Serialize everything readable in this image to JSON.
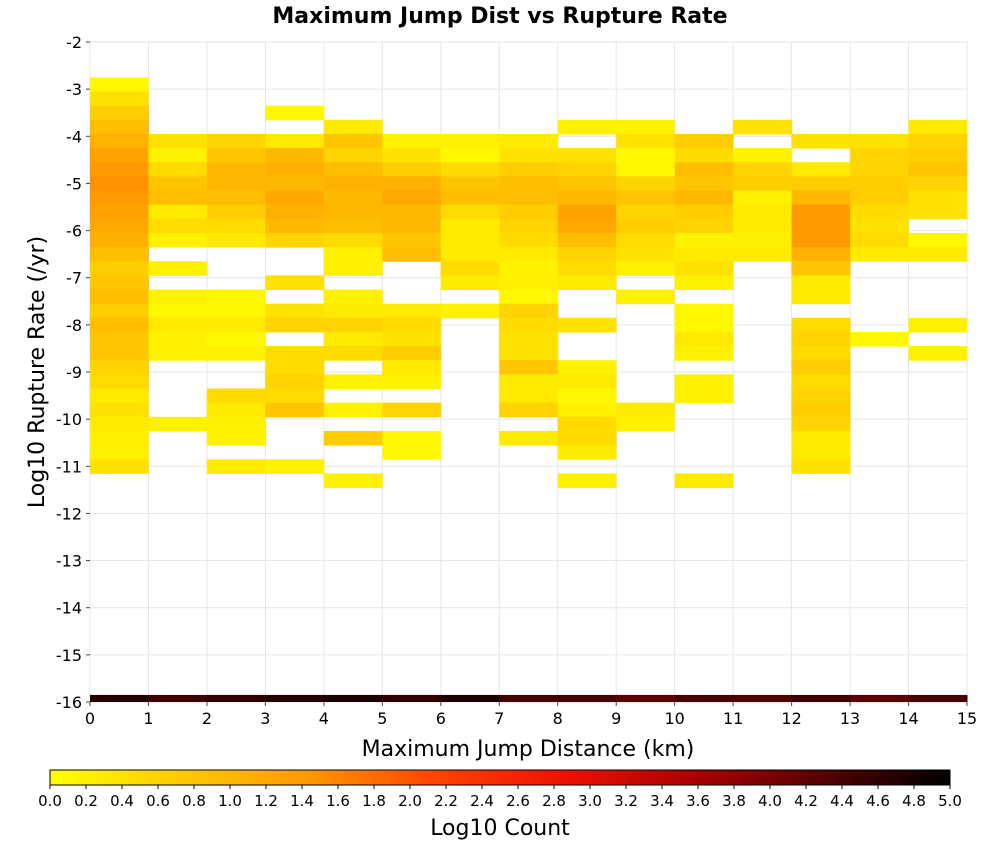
{
  "chart_data": {
    "type": "heatmap",
    "title": "Maximum Jump Dist vs Rupture Rate",
    "xlabel": "Maximum Jump Distance (km)",
    "ylabel": "Log10 Rupture Rate (/yr)",
    "xlim": [
      0,
      15
    ],
    "ylim": [
      -16,
      -2
    ],
    "x_ticks": [
      "0",
      "1",
      "2",
      "3",
      "4",
      "5",
      "6",
      "7",
      "8",
      "9",
      "10",
      "11",
      "12",
      "13",
      "14",
      "15"
    ],
    "y_ticks": [
      "-2",
      "-3",
      "-4",
      "-5",
      "-6",
      "-7",
      "-8",
      "-9",
      "-10",
      "-11",
      "-12",
      "-13",
      "-14",
      "-15",
      "-16"
    ],
    "grid": true,
    "x_bin_width": 1,
    "y_bin_width": 0.3,
    "colorbar": {
      "label": "Log10 Count",
      "range": [
        0.0,
        5.0
      ],
      "ticks": [
        "0.0",
        "0.2",
        "0.4",
        "0.6",
        "0.8",
        "1.0",
        "1.2",
        "1.4",
        "1.6",
        "1.8",
        "2.0",
        "2.2",
        "2.4",
        "2.6",
        "2.8",
        "3.0",
        "3.2",
        "3.4",
        "3.6",
        "3.8",
        "4.0",
        "4.2",
        "4.4",
        "4.6",
        "4.8",
        "5.0"
      ],
      "palette": [
        "#ffff00",
        "#ffcc00",
        "#ff9900",
        "#ff4400",
        "#ee1100",
        "#aa0000",
        "#550000",
        "#000000"
      ]
    },
    "columns": [
      {
        "x": 0,
        "bins": [
          [
            -2.9,
            0.1
          ],
          [
            -3.2,
            0.4
          ],
          [
            -3.5,
            0.7
          ],
          [
            -3.8,
            0.9
          ],
          [
            -4.1,
            1.1
          ],
          [
            -4.4,
            1.3
          ],
          [
            -4.7,
            1.4
          ],
          [
            -5.0,
            1.5
          ],
          [
            -5.3,
            1.4
          ],
          [
            -5.6,
            1.3
          ],
          [
            -5.9,
            1.2
          ],
          [
            -6.2,
            1.1
          ],
          [
            -6.5,
            0.9
          ],
          [
            -6.8,
            0.7
          ],
          [
            -7.1,
            0.8
          ],
          [
            -7.4,
            0.9
          ],
          [
            -7.7,
            0.7
          ],
          [
            -8.0,
            0.9
          ],
          [
            -8.3,
            0.8
          ],
          [
            -8.6,
            0.8
          ],
          [
            -8.9,
            0.6
          ],
          [
            -9.2,
            0.5
          ],
          [
            -9.5,
            0.3
          ],
          [
            -9.8,
            0.4
          ],
          [
            -10.1,
            0.3
          ],
          [
            -10.4,
            0.2
          ],
          [
            -10.7,
            0.2
          ],
          [
            -11.0,
            0.4
          ]
        ]
      },
      {
        "x": 1,
        "bins": [
          [
            -4.1,
            0.4
          ],
          [
            -4.4,
            0.2
          ],
          [
            -4.7,
            0.5
          ],
          [
            -5.0,
            0.8
          ],
          [
            -5.3,
            0.9
          ],
          [
            -5.6,
            0.3
          ],
          [
            -5.9,
            0.5
          ],
          [
            -6.2,
            0.2
          ],
          [
            -6.8,
            0.2
          ],
          [
            -7.7,
            0.1
          ],
          [
            -8.0,
            0.3
          ],
          [
            -8.3,
            0.2
          ],
          [
            -8.6,
            0.2
          ],
          [
            -10.1,
            0.2
          ],
          [
            -7.4,
            0.2
          ]
        ]
      },
      {
        "x": 2,
        "bins": [
          [
            -4.1,
            0.6
          ],
          [
            -4.4,
            0.8
          ],
          [
            -4.7,
            1.0
          ],
          [
            -5.0,
            1.0
          ],
          [
            -5.3,
            0.9
          ],
          [
            -5.6,
            0.7
          ],
          [
            -5.9,
            0.5
          ],
          [
            -6.2,
            0.3
          ],
          [
            -7.4,
            0.1
          ],
          [
            -7.7,
            0.1
          ],
          [
            -8.0,
            0.3
          ],
          [
            -8.3,
            0.1
          ],
          [
            -8.6,
            0.2
          ],
          [
            -9.5,
            0.5
          ],
          [
            -9.8,
            0.3
          ],
          [
            -10.1,
            0.2
          ],
          [
            -10.4,
            0.2
          ],
          [
            -11.0,
            0.3
          ]
        ]
      },
      {
        "x": 3,
        "bins": [
          [
            -3.5,
            0.1
          ],
          [
            -4.1,
            0.3
          ],
          [
            -4.4,
            1.0
          ],
          [
            -4.7,
            1.1
          ],
          [
            -5.0,
            1.0
          ],
          [
            -5.3,
            1.2
          ],
          [
            -5.6,
            1.1
          ],
          [
            -5.9,
            1.0
          ],
          [
            -6.2,
            0.6
          ],
          [
            -7.1,
            0.4
          ],
          [
            -7.7,
            0.4
          ],
          [
            -8.0,
            0.6
          ],
          [
            -8.6,
            0.5
          ],
          [
            -8.9,
            0.5
          ],
          [
            -9.2,
            0.6
          ],
          [
            -9.5,
            0.5
          ],
          [
            -9.8,
            0.8
          ],
          [
            -11.0,
            0.2
          ]
        ]
      },
      {
        "x": 4,
        "bins": [
          [
            -3.8,
            0.3
          ],
          [
            -4.1,
            0.8
          ],
          [
            -4.4,
            0.6
          ],
          [
            -4.7,
            0.9
          ],
          [
            -5.0,
            1.1
          ],
          [
            -5.3,
            1.0
          ],
          [
            -5.6,
            1.0
          ],
          [
            -5.9,
            0.9
          ],
          [
            -6.2,
            0.5
          ],
          [
            -6.5,
            0.2
          ],
          [
            -6.8,
            0.2
          ],
          [
            -7.4,
            0.2
          ],
          [
            -7.7,
            0.3
          ],
          [
            -8.0,
            0.6
          ],
          [
            -8.3,
            0.3
          ],
          [
            -8.6,
            0.5
          ],
          [
            -9.2,
            0.2
          ],
          [
            -9.8,
            0.2
          ],
          [
            -10.4,
            0.7
          ],
          [
            -11.3,
            0.2
          ]
        ]
      },
      {
        "x": 5,
        "bins": [
          [
            -4.1,
            0.2
          ],
          [
            -4.4,
            0.4
          ],
          [
            -4.7,
            0.7
          ],
          [
            -5.0,
            1.1
          ],
          [
            -5.3,
            1.2
          ],
          [
            -5.6,
            1.0
          ],
          [
            -5.9,
            1.0
          ],
          [
            -6.2,
            0.8
          ],
          [
            -6.5,
            0.9
          ],
          [
            -7.7,
            0.3
          ],
          [
            -8.0,
            0.5
          ],
          [
            -8.3,
            0.4
          ],
          [
            -8.6,
            0.7
          ],
          [
            -8.9,
            0.3
          ],
          [
            -9.2,
            0.2
          ],
          [
            -9.8,
            0.6
          ],
          [
            -10.4,
            0.1
          ],
          [
            -10.7,
            0.1
          ]
        ]
      },
      {
        "x": 6,
        "bins": [
          [
            -4.1,
            0.2
          ],
          [
            -4.4,
            0.1
          ],
          [
            -4.7,
            0.5
          ],
          [
            -5.0,
            0.8
          ],
          [
            -5.3,
            0.9
          ],
          [
            -5.6,
            0.5
          ],
          [
            -5.9,
            0.3
          ],
          [
            -6.2,
            0.3
          ],
          [
            -6.5,
            0.3
          ],
          [
            -6.8,
            0.5
          ],
          [
            -7.1,
            0.3
          ],
          [
            -7.7,
            0.2
          ]
        ]
      },
      {
        "x": 7,
        "bins": [
          [
            -4.1,
            0.3
          ],
          [
            -4.4,
            0.4
          ],
          [
            -4.7,
            0.7
          ],
          [
            -5.0,
            0.9
          ],
          [
            -5.3,
            0.9
          ],
          [
            -5.6,
            0.7
          ],
          [
            -5.9,
            0.6
          ],
          [
            -6.2,
            0.5
          ],
          [
            -6.5,
            0.3
          ],
          [
            -6.8,
            0.2
          ],
          [
            -7.1,
            0.2
          ],
          [
            -7.4,
            0.1
          ],
          [
            -7.7,
            0.6
          ],
          [
            -8.0,
            0.5
          ],
          [
            -8.3,
            0.4
          ],
          [
            -8.6,
            0.4
          ],
          [
            -8.9,
            0.8
          ],
          [
            -9.2,
            0.3
          ],
          [
            -9.5,
            0.3
          ],
          [
            -9.8,
            0.6
          ],
          [
            -10.4,
            0.3
          ]
        ]
      },
      {
        "x": 8,
        "bins": [
          [
            -3.8,
            0.2
          ],
          [
            -4.4,
            0.4
          ],
          [
            -4.7,
            0.6
          ],
          [
            -5.0,
            0.8
          ],
          [
            -5.3,
            1.0
          ],
          [
            -5.6,
            1.3
          ],
          [
            -5.9,
            1.2
          ],
          [
            -6.2,
            0.9
          ],
          [
            -6.5,
            0.6
          ],
          [
            -6.8,
            0.5
          ],
          [
            -7.1,
            0.3
          ],
          [
            -8.0,
            0.4
          ],
          [
            -8.9,
            0.2
          ],
          [
            -9.2,
            0.3
          ],
          [
            -9.5,
            0.1
          ],
          [
            -9.8,
            0.2
          ],
          [
            -10.1,
            0.5
          ],
          [
            -10.4,
            0.5
          ],
          [
            -10.7,
            0.3
          ],
          [
            -11.3,
            0.2
          ]
        ]
      },
      {
        "x": 9,
        "bins": [
          [
            -3.8,
            0.2
          ],
          [
            -4.1,
            0.4
          ],
          [
            -4.4,
            0.1
          ],
          [
            -4.7,
            0.1
          ],
          [
            -5.0,
            0.6
          ],
          [
            -5.3,
            0.8
          ],
          [
            -5.6,
            0.6
          ],
          [
            -5.9,
            0.7
          ],
          [
            -6.2,
            0.5
          ],
          [
            -6.5,
            0.4
          ],
          [
            -6.8,
            0.2
          ],
          [
            -7.4,
            0.2
          ],
          [
            -9.8,
            0.3
          ],
          [
            -10.1,
            0.2
          ]
        ]
      },
      {
        "x": 10,
        "bins": [
          [
            -4.1,
            0.7
          ],
          [
            -4.4,
            0.5
          ],
          [
            -4.7,
            0.9
          ],
          [
            -5.0,
            0.8
          ],
          [
            -5.3,
            1.0
          ],
          [
            -5.6,
            0.7
          ],
          [
            -5.9,
            0.6
          ],
          [
            -6.2,
            0.2
          ],
          [
            -6.5,
            0.3
          ],
          [
            -6.8,
            0.4
          ],
          [
            -7.1,
            0.2
          ],
          [
            -7.7,
            0.1
          ],
          [
            -8.0,
            0.1
          ],
          [
            -8.3,
            0.3
          ],
          [
            -8.6,
            0.2
          ],
          [
            -9.2,
            0.2
          ],
          [
            -9.5,
            0.2
          ],
          [
            -11.3,
            0.3
          ]
        ]
      },
      {
        "x": 11,
        "bins": [
          [
            -3.8,
            0.4
          ],
          [
            -4.4,
            0.2
          ],
          [
            -4.7,
            0.6
          ],
          [
            -5.0,
            0.7
          ],
          [
            -5.3,
            0.2
          ],
          [
            -5.6,
            0.3
          ],
          [
            -5.9,
            0.3
          ],
          [
            -6.2,
            0.2
          ],
          [
            -6.5,
            0.3
          ]
        ]
      },
      {
        "x": 12,
        "bins": [
          [
            -4.1,
            0.4
          ],
          [
            -4.7,
            0.3
          ],
          [
            -5.0,
            0.7
          ],
          [
            -5.3,
            1.0
          ],
          [
            -5.6,
            1.4
          ],
          [
            -5.9,
            1.4
          ],
          [
            -6.2,
            1.4
          ],
          [
            -6.5,
            1.1
          ],
          [
            -6.8,
            0.8
          ],
          [
            -7.1,
            0.3
          ],
          [
            -7.4,
            0.3
          ],
          [
            -8.0,
            0.5
          ],
          [
            -8.3,
            0.6
          ],
          [
            -8.6,
            0.5
          ],
          [
            -8.9,
            0.7
          ],
          [
            -9.2,
            0.5
          ],
          [
            -9.5,
            0.6
          ],
          [
            -9.8,
            0.7
          ],
          [
            -10.1,
            0.6
          ],
          [
            -10.4,
            0.3
          ],
          [
            -10.7,
            0.3
          ],
          [
            -11.0,
            0.4
          ]
        ]
      },
      {
        "x": 13,
        "bins": [
          [
            -4.1,
            0.4
          ],
          [
            -4.4,
            0.6
          ],
          [
            -4.7,
            0.6
          ],
          [
            -5.0,
            0.7
          ],
          [
            -5.3,
            0.7
          ],
          [
            -5.6,
            0.5
          ],
          [
            -5.9,
            0.4
          ],
          [
            -6.2,
            0.5
          ],
          [
            -6.5,
            0.3
          ],
          [
            -8.3,
            0.1
          ]
        ]
      },
      {
        "x": 14,
        "bins": [
          [
            -3.8,
            0.3
          ],
          [
            -4.1,
            0.6
          ],
          [
            -4.4,
            0.7
          ],
          [
            -4.7,
            0.8
          ],
          [
            -5.0,
            0.6
          ],
          [
            -5.3,
            0.4
          ],
          [
            -5.6,
            0.4
          ],
          [
            -6.2,
            0.1
          ],
          [
            -6.5,
            0.3
          ],
          [
            -8.0,
            0.2
          ],
          [
            -8.6,
            0.2
          ]
        ]
      }
    ],
    "bottom_row": {
      "y": -16,
      "values": [
        4.7,
        4.5,
        4.6,
        4.7,
        4.8,
        4.6,
        4.8,
        4.4,
        4.4,
        4.2,
        4.4,
        4.3,
        4.5,
        4.2,
        4.4
      ]
    }
  }
}
